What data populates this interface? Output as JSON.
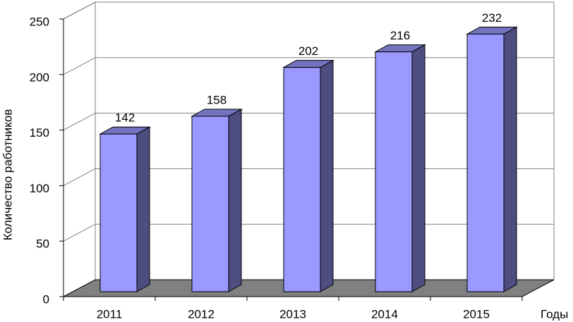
{
  "chart_data": {
    "type": "bar",
    "title_y": "Количество работников",
    "x_label": "Годы",
    "categories": [
      "2011",
      "2012",
      "2013",
      "2014",
      "2015"
    ],
    "values": [
      142,
      158,
      202,
      216,
      232
    ],
    "color": "#9999ff",
    "ylim": [
      0,
      250
    ],
    "yticks": [
      0,
      50,
      100,
      150,
      200,
      250
    ],
    "grid": true
  }
}
